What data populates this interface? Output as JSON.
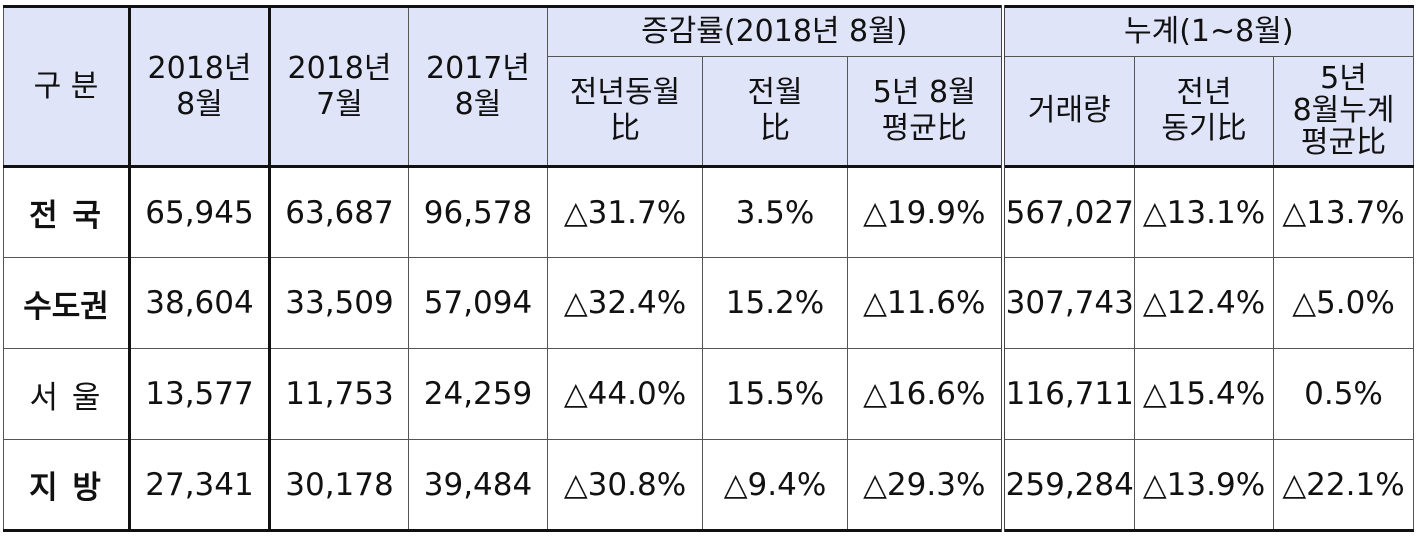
{
  "header": {
    "category": "구 분",
    "col_2018_08": [
      "2018년",
      "8월"
    ],
    "col_2018_07": [
      "2018년",
      "7월"
    ],
    "col_2017_08": [
      "2017년",
      "8월"
    ],
    "growth_group": "증감률(2018년 8월)",
    "growth_yoy": [
      "전년동월",
      "比"
    ],
    "growth_mom": [
      "전월",
      "比"
    ],
    "growth_5yr": [
      "5년 8월",
      "평균比"
    ],
    "cumulative_group": "누계(1~8월)",
    "cum_volume": "거래량",
    "cum_yoy": [
      "전년",
      "동기比"
    ],
    "cum_5yr": [
      "5년",
      "8월누계",
      "평균比"
    ]
  },
  "rows": [
    {
      "label": "전 국",
      "bold": true,
      "v2018_08": "65,945",
      "v2018_07": "63,687",
      "v2017_08": "96,578",
      "yoy": "△31.7%",
      "mom": "3.5%",
      "avg5": "△19.9%",
      "cum": "567,027",
      "cum_yoy": "△13.1%",
      "cum_avg5": "△13.7%"
    },
    {
      "label": "수도권",
      "bold": true,
      "v2018_08": "38,604",
      "v2018_07": "33,509",
      "v2017_08": "57,094",
      "yoy": "△32.4%",
      "mom": "15.2%",
      "avg5": "△11.6%",
      "cum": "307,743",
      "cum_yoy": "△12.4%",
      "cum_avg5": "△5.0%"
    },
    {
      "label": "서 울",
      "bold": false,
      "v2018_08": "13,577",
      "v2018_07": "11,753",
      "v2017_08": "24,259",
      "yoy": "△44.0%",
      "mom": "15.5%",
      "avg5": "△16.6%",
      "cum": "116,711",
      "cum_yoy": "△15.4%",
      "cum_avg5": "0.5%"
    },
    {
      "label": "지 방",
      "bold": true,
      "v2018_08": "27,341",
      "v2018_07": "30,178",
      "v2017_08": "39,484",
      "yoy": "△30.8%",
      "mom": "△9.4%",
      "avg5": "△29.3%",
      "cum": "259,284",
      "cum_yoy": "△13.9%",
      "cum_avg5": "△22.1%"
    }
  ]
}
